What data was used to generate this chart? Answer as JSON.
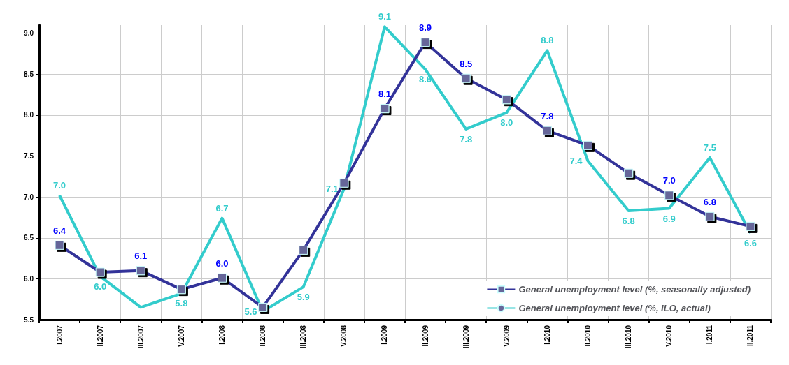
{
  "chart_data": {
    "type": "line",
    "categories": [
      "I.2007",
      "II.2007",
      "III.2007",
      "V.2007",
      "I.2008",
      "II.2008",
      "III.2008",
      "V.2008",
      "I.2009",
      "II.2009",
      "III.2009",
      "V.2009",
      "I.2010",
      "II.2010",
      "III.2010",
      "V.2010",
      "I.2011",
      "II.2011"
    ],
    "series": [
      {
        "name": "General unemployment level (%, seasonally adjusted)",
        "color": "#333399",
        "marker": "square",
        "values": [
          6.41,
          6.08,
          6.1,
          5.87,
          6.01,
          5.65,
          6.35,
          7.17,
          8.08,
          8.89,
          8.45,
          8.19,
          7.81,
          7.63,
          7.29,
          7.02,
          6.76,
          6.64
        ],
        "value_labels": [
          "6.4",
          null,
          "6.1",
          null,
          "6.0",
          null,
          null,
          null,
          "8.1",
          "8.9",
          "8.5",
          null,
          "7.8",
          null,
          null,
          "7.0",
          "6.8",
          null
        ]
      },
      {
        "name": "General unemployment level (%, ILO, actual)",
        "color": "#33cccc",
        "marker": "none",
        "values": [
          7.02,
          6.03,
          5.65,
          5.82,
          6.74,
          5.6,
          5.9,
          7.1,
          9.08,
          8.56,
          7.83,
          8.03,
          8.79,
          7.44,
          6.83,
          6.86,
          7.48,
          6.56
        ],
        "value_labels": [
          "7.0",
          "6.0",
          null,
          "5.8",
          "6.7",
          "5.6",
          "5.9",
          "7.1",
          "9.1",
          "8.6",
          "7.8",
          "8.0",
          "8.8",
          "7.4",
          "6.8",
          "6.9",
          "7.5",
          "6.6"
        ]
      }
    ],
    "ylim": [
      5.5,
      9.1
    ],
    "yticks": [
      5.5,
      {
        "value": 6,
        "label": "6.0"
      },
      6.5,
      {
        "value": 7,
        "label": "7.0"
      },
      7.5,
      {
        "value": 8,
        "label": "8.0"
      },
      8.5,
      {
        "value": 9,
        "label": "9.0"
      }
    ],
    "grid": true,
    "legend": "bottom right"
  }
}
